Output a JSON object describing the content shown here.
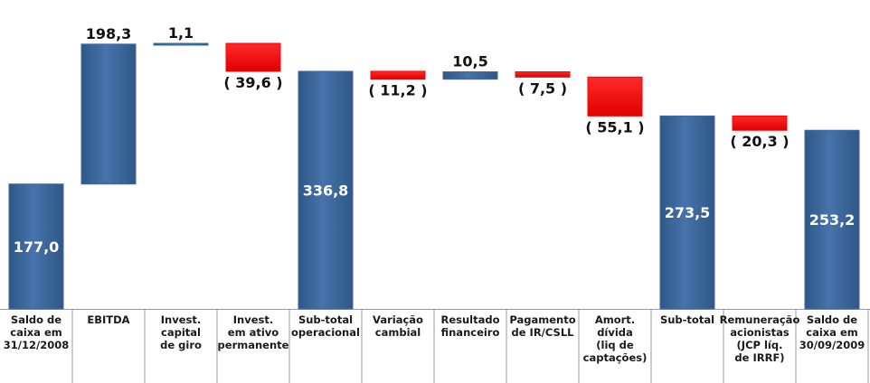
{
  "chart_data": {
    "type": "waterfall",
    "categories": [
      [
        "Saldo de",
        "caixa em",
        "31/12/2008"
      ],
      [
        "EBITDA"
      ],
      [
        "Invest.",
        "capital",
        "de giro"
      ],
      [
        "Invest.",
        "em ativo",
        "permanente"
      ],
      [
        "Sub-total",
        "operacional"
      ],
      [
        "Variação",
        "cambial"
      ],
      [
        "Resultado",
        "financeiro"
      ],
      [
        "Pagamento",
        "de IR/CSLL"
      ],
      [
        "Amort.",
        "dívida",
        "(liq de",
        "captações)"
      ],
      [
        "Sub-total"
      ],
      [
        "Remuneração",
        "acionistas",
        "(JCP líq.",
        "de IRRF)"
      ],
      [
        "Saldo de",
        "caixa em",
        "30/09/2009"
      ]
    ],
    "values": [
      177.0,
      198.3,
      1.1,
      -39.6,
      336.8,
      -11.2,
      10.5,
      -7.5,
      -55.1,
      273.5,
      -20.3,
      253.2
    ],
    "value_labels": [
      "177,0",
      "198,3",
      "1,1",
      "( 39,6 )",
      "336,8",
      "( 11,2 )",
      "10,5",
      "( 7,5 )",
      "( 55,1 )",
      "273,5",
      "( 20,3 )",
      "253,2"
    ],
    "totals": [
      0,
      4,
      9,
      11
    ],
    "color_positive": "#3d6a9f",
    "color_negative": "#ff0000"
  }
}
